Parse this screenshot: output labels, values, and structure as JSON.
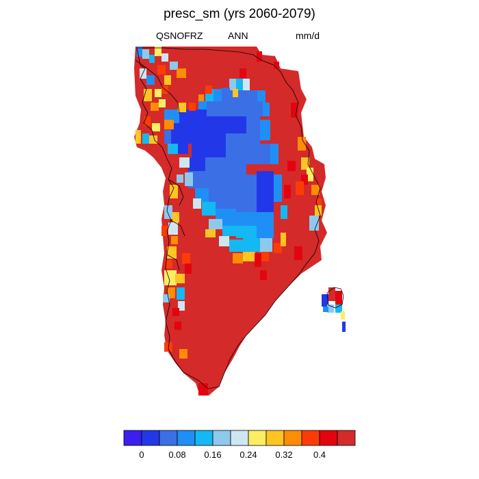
{
  "title": "presc_sm (yrs 2060-2079)",
  "subtitle": {
    "left": "QSNOFRZ",
    "center": "ANN",
    "right": "mm/d"
  },
  "colorbar": {
    "colors": [
      "#3a1ff0",
      "#2238e8",
      "#3a6fe6",
      "#1f8ff5",
      "#14b8f3",
      "#8ec9ec",
      "#cde6f2",
      "#fbee62",
      "#fcc523",
      "#fd8c06",
      "#fb3c07",
      "#e2050f",
      "#d42a2a"
    ],
    "tick_labels": [
      "0",
      "0.08",
      "0.16",
      "0.24",
      "0.32",
      "0.4"
    ]
  },
  "chart_data": {
    "type": "heatmap",
    "title": "presc_sm (yrs 2060-2079)",
    "variable": "QSNOFRZ",
    "period": "ANN",
    "units": "mm/d",
    "region": "Greenland",
    "value_range": [
      0,
      0.44
    ],
    "levels": [
      0,
      0.04,
      0.08,
      0.12,
      0.16,
      0.2,
      0.24,
      0.28,
      0.32,
      0.36,
      0.4,
      0.44
    ],
    "summary": "Interior/northern-central ice sheet shows low values (0-0.12 mm/d, blue); margins and southern ice sheet show high values (>0.44 mm/d, dark red); transition zone of light blue/yellow/orange along edges of the low region and along the west coast."
  }
}
